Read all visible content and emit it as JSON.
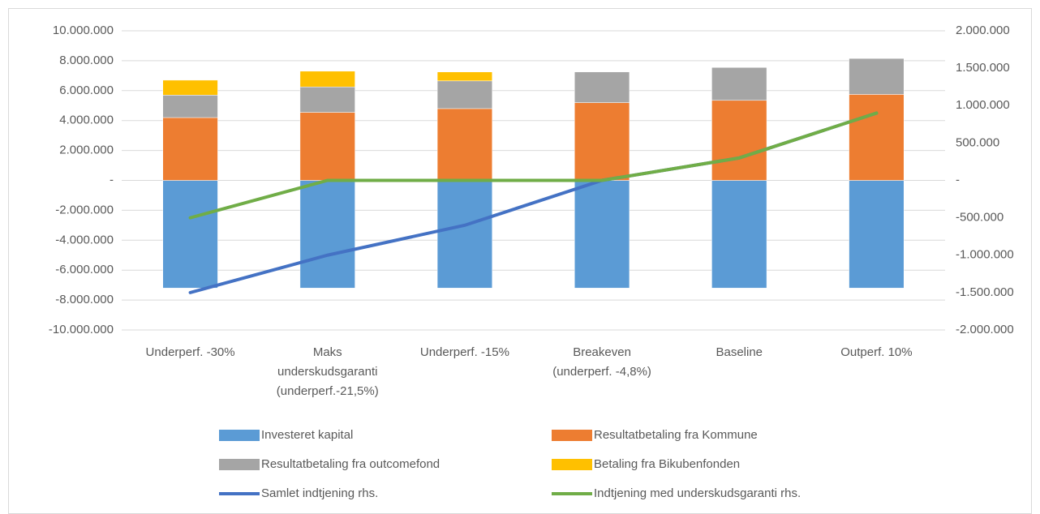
{
  "chart_data": {
    "type": "bar",
    "stacked": true,
    "categories": [
      "Underperf. -30%",
      "Maks\nunderskudsgaranti\n(underperf.-21,5%)",
      "Underperf. -15%",
      "Breakeven\n(underperf. -4,8%)",
      "Baseline",
      "Outperf. 10%"
    ],
    "series": [
      {
        "name": "Investeret kapital",
        "color": "#5b9bd5",
        "values": [
          -7200000,
          -7200000,
          -7200000,
          -7200000,
          -7200000,
          -7200000
        ]
      },
      {
        "name": "Resultatbetaling fra Kommune",
        "color": "#ed7d31",
        "values": [
          4200000,
          4550000,
          4800000,
          5200000,
          5350000,
          5750000
        ]
      },
      {
        "name": "Resultatbetaling fra outcomefond",
        "color": "#a5a5a5",
        "values": [
          1500000,
          1700000,
          1850000,
          2050000,
          2200000,
          2400000
        ]
      },
      {
        "name": "Betaling fra Bikubenfonden",
        "color": "#ffc000",
        "values": [
          1000000,
          1050000,
          600000,
          0,
          0,
          0
        ]
      },
      {
        "name": "Samlet indtjening rhs.",
        "color": "#4472c4",
        "type": "line",
        "axis": "y2",
        "values": [
          -1500000,
          -1000000,
          -600000,
          0,
          300000,
          900000
        ]
      },
      {
        "name": "Indtjening med underskudsgaranti rhs.",
        "color": "#70ad47",
        "type": "line",
        "axis": "y2",
        "values": [
          -500000,
          0,
          0,
          0,
          300000,
          900000
        ]
      }
    ],
    "ylim": [
      -10000000,
      10000000
    ],
    "yticks": [
      {
        "value": 10000000,
        "label": "10.000.000"
      },
      {
        "value": 8000000,
        "label": "8.000.000"
      },
      {
        "value": 6000000,
        "label": "6.000.000"
      },
      {
        "value": 4000000,
        "label": "4.000.000"
      },
      {
        "value": 2000000,
        "label": "2.000.000"
      },
      {
        "value": 0,
        "label": "-"
      },
      {
        "value": -2000000,
        "label": "-2.000.000"
      },
      {
        "value": -4000000,
        "label": "-4.000.000"
      },
      {
        "value": -6000000,
        "label": "-6.000.000"
      },
      {
        "value": -8000000,
        "label": "-8.000.000"
      },
      {
        "value": -10000000,
        "label": "-10.000.000"
      }
    ],
    "y2lim": [
      -2000000,
      2000000
    ],
    "y2ticks": [
      {
        "value": 2000000,
        "label": "2.000.000"
      },
      {
        "value": 1500000,
        "label": "1.500.000"
      },
      {
        "value": 1000000,
        "label": "1.000.000"
      },
      {
        "value": 500000,
        "label": "500.000"
      },
      {
        "value": 0,
        "label": "-"
      },
      {
        "value": -500000,
        "label": "-500.000"
      },
      {
        "value": -1000000,
        "label": "-1.000.000"
      },
      {
        "value": -1500000,
        "label": "-1.500.000"
      },
      {
        "value": -2000000,
        "label": "-2.000.000"
      }
    ],
    "grid": true,
    "legend": "bottom"
  }
}
